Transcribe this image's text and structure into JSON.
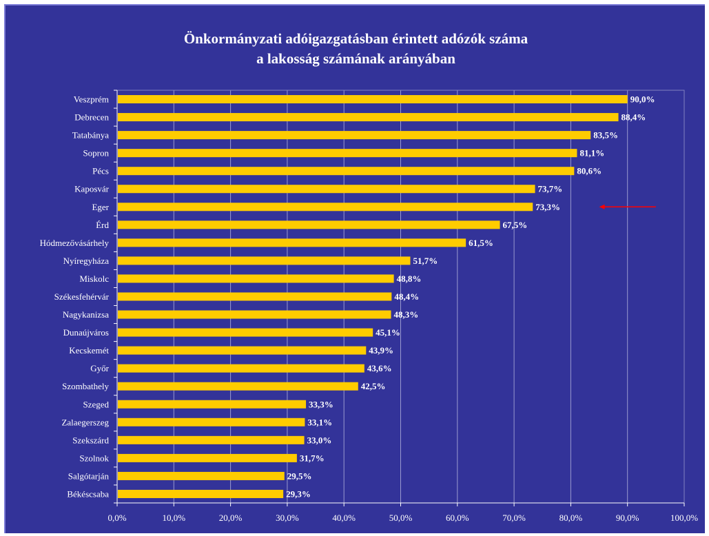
{
  "chart_data": {
    "type": "bar",
    "orientation": "horizontal",
    "title": [
      "Önkormányzati adóigazgatásban érintett adózók száma",
      "a lakosság számának arányában"
    ],
    "categories": [
      "Veszprém",
      "Debrecen",
      "Tatabánya",
      "Sopron",
      "Pécs",
      "Kaposvár",
      "Eger",
      "Érd",
      "Hódmezővásárhely",
      "Nyíregyháza",
      "Miskolc",
      "Székesfehérvár",
      "Nagykanizsa",
      "Dunaújváros",
      "Kecskemét",
      "Győr",
      "Szombathely",
      "Szeged",
      "Zalaegerszeg",
      "Szekszárd",
      "Szolnok",
      "Salgótarján",
      "Békéscsaba"
    ],
    "values": [
      90.0,
      88.4,
      83.5,
      81.1,
      80.6,
      73.7,
      73.3,
      67.5,
      61.5,
      51.7,
      48.8,
      48.4,
      48.3,
      45.1,
      43.9,
      43.6,
      42.5,
      33.3,
      33.1,
      33.0,
      31.7,
      29.5,
      29.3
    ],
    "labels": [
      "90,0%",
      "88,4%",
      "83,5%",
      "81,1%",
      "80,6%",
      "73,7%",
      "73,3%",
      "67,5%",
      "61,5%",
      "51,7%",
      "48,8%",
      "48,4%",
      "48,3%",
      "45,1%",
      "43,9%",
      "43,6%",
      "42,5%",
      "33,3%",
      "33,1%",
      "33,0%",
      "31,7%",
      "29,5%",
      "29,3%"
    ],
    "xlim": [
      0,
      100
    ],
    "xticks": [
      "0,0%",
      "10,0%",
      "20,0%",
      "30,0%",
      "40,0%",
      "50,0%",
      "60,0%",
      "70,0%",
      "80,0%",
      "90,0%",
      "100,0%"
    ],
    "grid": true,
    "highlight": "Eger",
    "colors": {
      "background": "#333399",
      "bar": "#ffcc00",
      "grid": "#9a9acf",
      "text": "#ffffff",
      "arrow": "#ff0000"
    }
  }
}
